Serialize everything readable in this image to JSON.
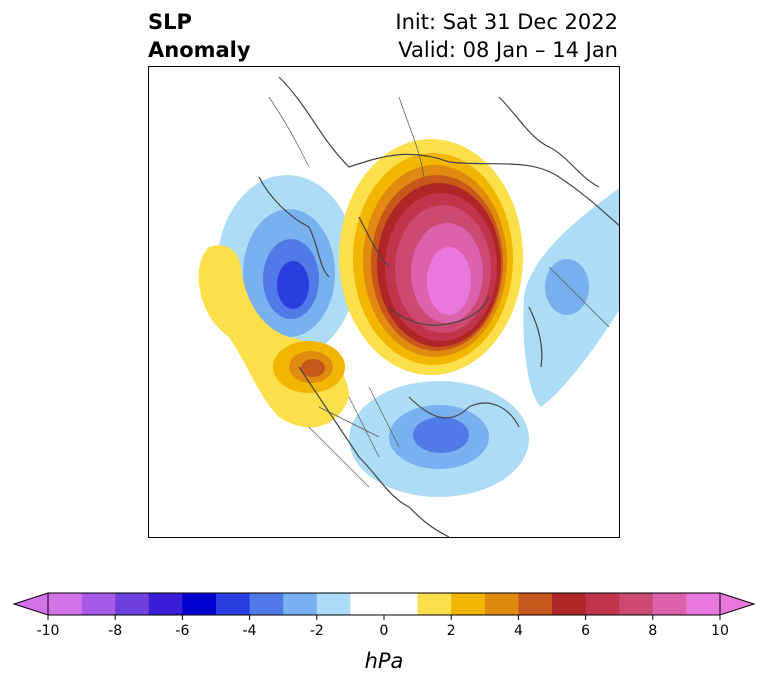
{
  "title": {
    "left_line1": "SLP",
    "left_line2": "Anomaly",
    "right_line1": "Init: Sat 31 Dec 2022",
    "right_line2": "Valid: 08 Jan – 14 Jan"
  },
  "colorbar": {
    "unit": "hPa",
    "tick_labels": [
      "-10",
      "-8",
      "-6",
      "-4",
      "-2",
      "0",
      "2",
      "4",
      "6",
      "8",
      "10"
    ],
    "colors": [
      "#d472e8",
      "#a85be6",
      "#6f3fe0",
      "#3a1ed8",
      "#0000d0",
      "#2a3ee0",
      "#4f7ae8",
      "#79b0f0",
      "#addcf7",
      "#ffffff",
      "#ffffff",
      "#fcdf4a",
      "#f2b600",
      "#e08a10",
      "#c8581a",
      "#b02626",
      "#c2344c",
      "#cc4a72",
      "#dc62ac",
      "#ea78dc"
    ]
  }
}
